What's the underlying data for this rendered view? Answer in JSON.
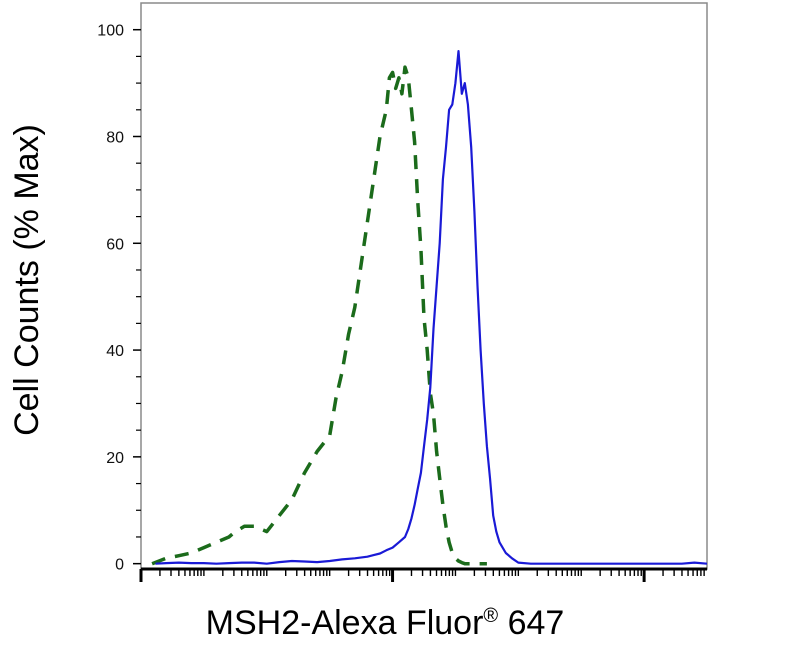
{
  "chart_data": {
    "type": "line",
    "title": "",
    "xlabel": "MSH2-Alexa Fluor",
    "xlabel_mark": "®",
    "xlabel_suffix": " 647",
    "ylabel": "Cell Counts (% Max)",
    "x_scale": "log",
    "xlim": [
      1e-06,
      1000
    ],
    "ylim": [
      -1,
      105
    ],
    "y_ticks": [
      0,
      20,
      40,
      60,
      80,
      100
    ],
    "y_tick_labels": [
      "0",
      "20",
      "40",
      "60",
      "80",
      "100"
    ],
    "grid": false,
    "legend": "none",
    "series": [
      {
        "style": "dashed",
        "color": "#1b6b1b",
        "x": [
          1.5e-06,
          2.5e-06,
          4e-06,
          6.3e-06,
          1e-05,
          1.58e-05,
          2.5e-05,
          3.16e-05,
          4.4e-05,
          6.31e-05,
          0.0001,
          0.000158,
          0.000251,
          0.000398,
          0.000631,
          0.001,
          0.00126,
          0.00158,
          0.002,
          0.00251,
          0.00316,
          0.00398,
          0.00501,
          0.00631,
          0.00794,
          0.00891,
          0.01,
          0.0112,
          0.0126,
          0.0141,
          0.0158,
          0.0178,
          0.02,
          0.0224,
          0.0251,
          0.0282,
          0.0316,
          0.0355,
          0.0398,
          0.0447,
          0.0501,
          0.0562,
          0.0631,
          0.0708,
          0.0794,
          0.0891,
          0.1,
          0.112,
          0.126,
          0.141,
          0.158,
          0.178,
          0.2,
          0.251,
          0.316
        ],
        "y": [
          0,
          1,
          1.5,
          2,
          3,
          4,
          5,
          6,
          7,
          7,
          6,
          9,
          12,
          17,
          21,
          24,
          31,
          36,
          43,
          48,
          56,
          64,
          72,
          80,
          85,
          91,
          92,
          89,
          91,
          88,
          93,
          91,
          85,
          79,
          68,
          59,
          46,
          40,
          32,
          28,
          21,
          16,
          11,
          7,
          4,
          2,
          1,
          0.5,
          0.2,
          0,
          0,
          0,
          0,
          0,
          0
        ]
      },
      {
        "style": "solid",
        "color": "#1a1ad6",
        "x": [
          1.7e-06,
          2.5e-06,
          4e-06,
          6.3e-06,
          1e-05,
          1.58e-05,
          2.5e-05,
          4e-05,
          6.3e-05,
          0.0001,
          0.000158,
          0.000251,
          0.000398,
          0.000631,
          0.001,
          0.00158,
          0.00251,
          0.00398,
          0.00501,
          0.00631,
          0.00794,
          0.01,
          0.0126,
          0.0158,
          0.0178,
          0.02,
          0.0224,
          0.0251,
          0.0282,
          0.0316,
          0.0355,
          0.0398,
          0.0447,
          0.0501,
          0.0562,
          0.0631,
          0.0708,
          0.0794,
          0.0891,
          0.1,
          0.112,
          0.126,
          0.141,
          0.158,
          0.178,
          0.2,
          0.224,
          0.251,
          0.282,
          0.316,
          0.355,
          0.398,
          0.447,
          0.501,
          0.631,
          0.794,
          1,
          1.58,
          2.51,
          3.98,
          6.31,
          10,
          15.8,
          25.1,
          39.8,
          63.1,
          100,
          158,
          251,
          398,
          631,
          1000
        ],
        "y": [
          0,
          0.1,
          0.2,
          0.1,
          0.1,
          0,
          0.1,
          0.2,
          0.2,
          0,
          0.3,
          0.5,
          0.4,
          0.3,
          0.5,
          0.8,
          1,
          1.3,
          1.6,
          1.9,
          2.5,
          3,
          4,
          5,
          6.5,
          8.5,
          11,
          14,
          17,
          22,
          27,
          33,
          44,
          52,
          60,
          72,
          78,
          85,
          86,
          90,
          96,
          88,
          90,
          86,
          78,
          66,
          52,
          40,
          30,
          22,
          16,
          9,
          6,
          4,
          2,
          1,
          0.2,
          0,
          0,
          0,
          0,
          0,
          0,
          0,
          0,
          0,
          0,
          0,
          0,
          0,
          0.2,
          0
        ]
      }
    ]
  }
}
